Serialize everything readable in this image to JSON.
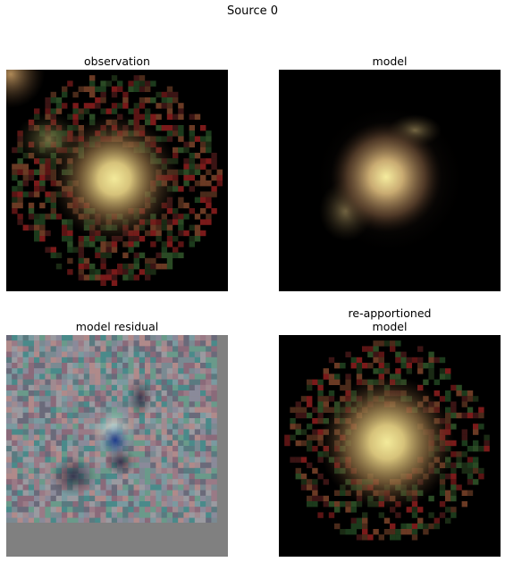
{
  "figure": {
    "title": "Source 0",
    "panels": [
      {
        "id": "observation",
        "title_lines": [
          "observation"
        ]
      },
      {
        "id": "model",
        "title_lines": [
          "model"
        ]
      },
      {
        "id": "model-residual",
        "title_lines": [
          "model residual"
        ]
      },
      {
        "id": "reapportioned-model",
        "title_lines": [
          "re-apportioned",
          "model"
        ]
      }
    ]
  },
  "colors": {
    "background": "#000000",
    "residual_background": "#808080",
    "core": "#e8d98a",
    "noise_red": "#8a1f1f",
    "noise_green": "#1f5a2a",
    "residual_blue": "#1e3c8c"
  }
}
